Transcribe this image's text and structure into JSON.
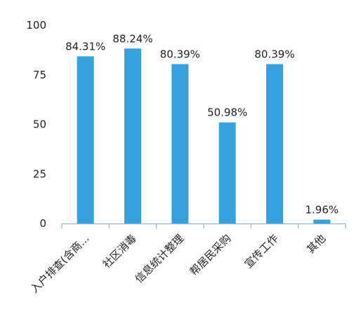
{
  "chart_data": {
    "type": "bar",
    "categories": [
      "入户排查(含商...",
      "社区消毒",
      "信息统计整理",
      "帮居民采购",
      "宣传工作",
      "其他"
    ],
    "values": [
      84.31,
      88.24,
      80.39,
      50.98,
      80.39,
      1.96
    ],
    "data_labels": [
      "84.31%",
      "88.24%",
      "80.39%",
      "50.98%",
      "80.39%",
      "1.96%"
    ],
    "y_ticks": [
      0,
      25,
      50,
      75,
      100
    ],
    "ylim": [
      0,
      100
    ],
    "grid": false,
    "legend": "none",
    "bar_color": "#35a2dd",
    "axis_color": "#8fb7dc"
  }
}
